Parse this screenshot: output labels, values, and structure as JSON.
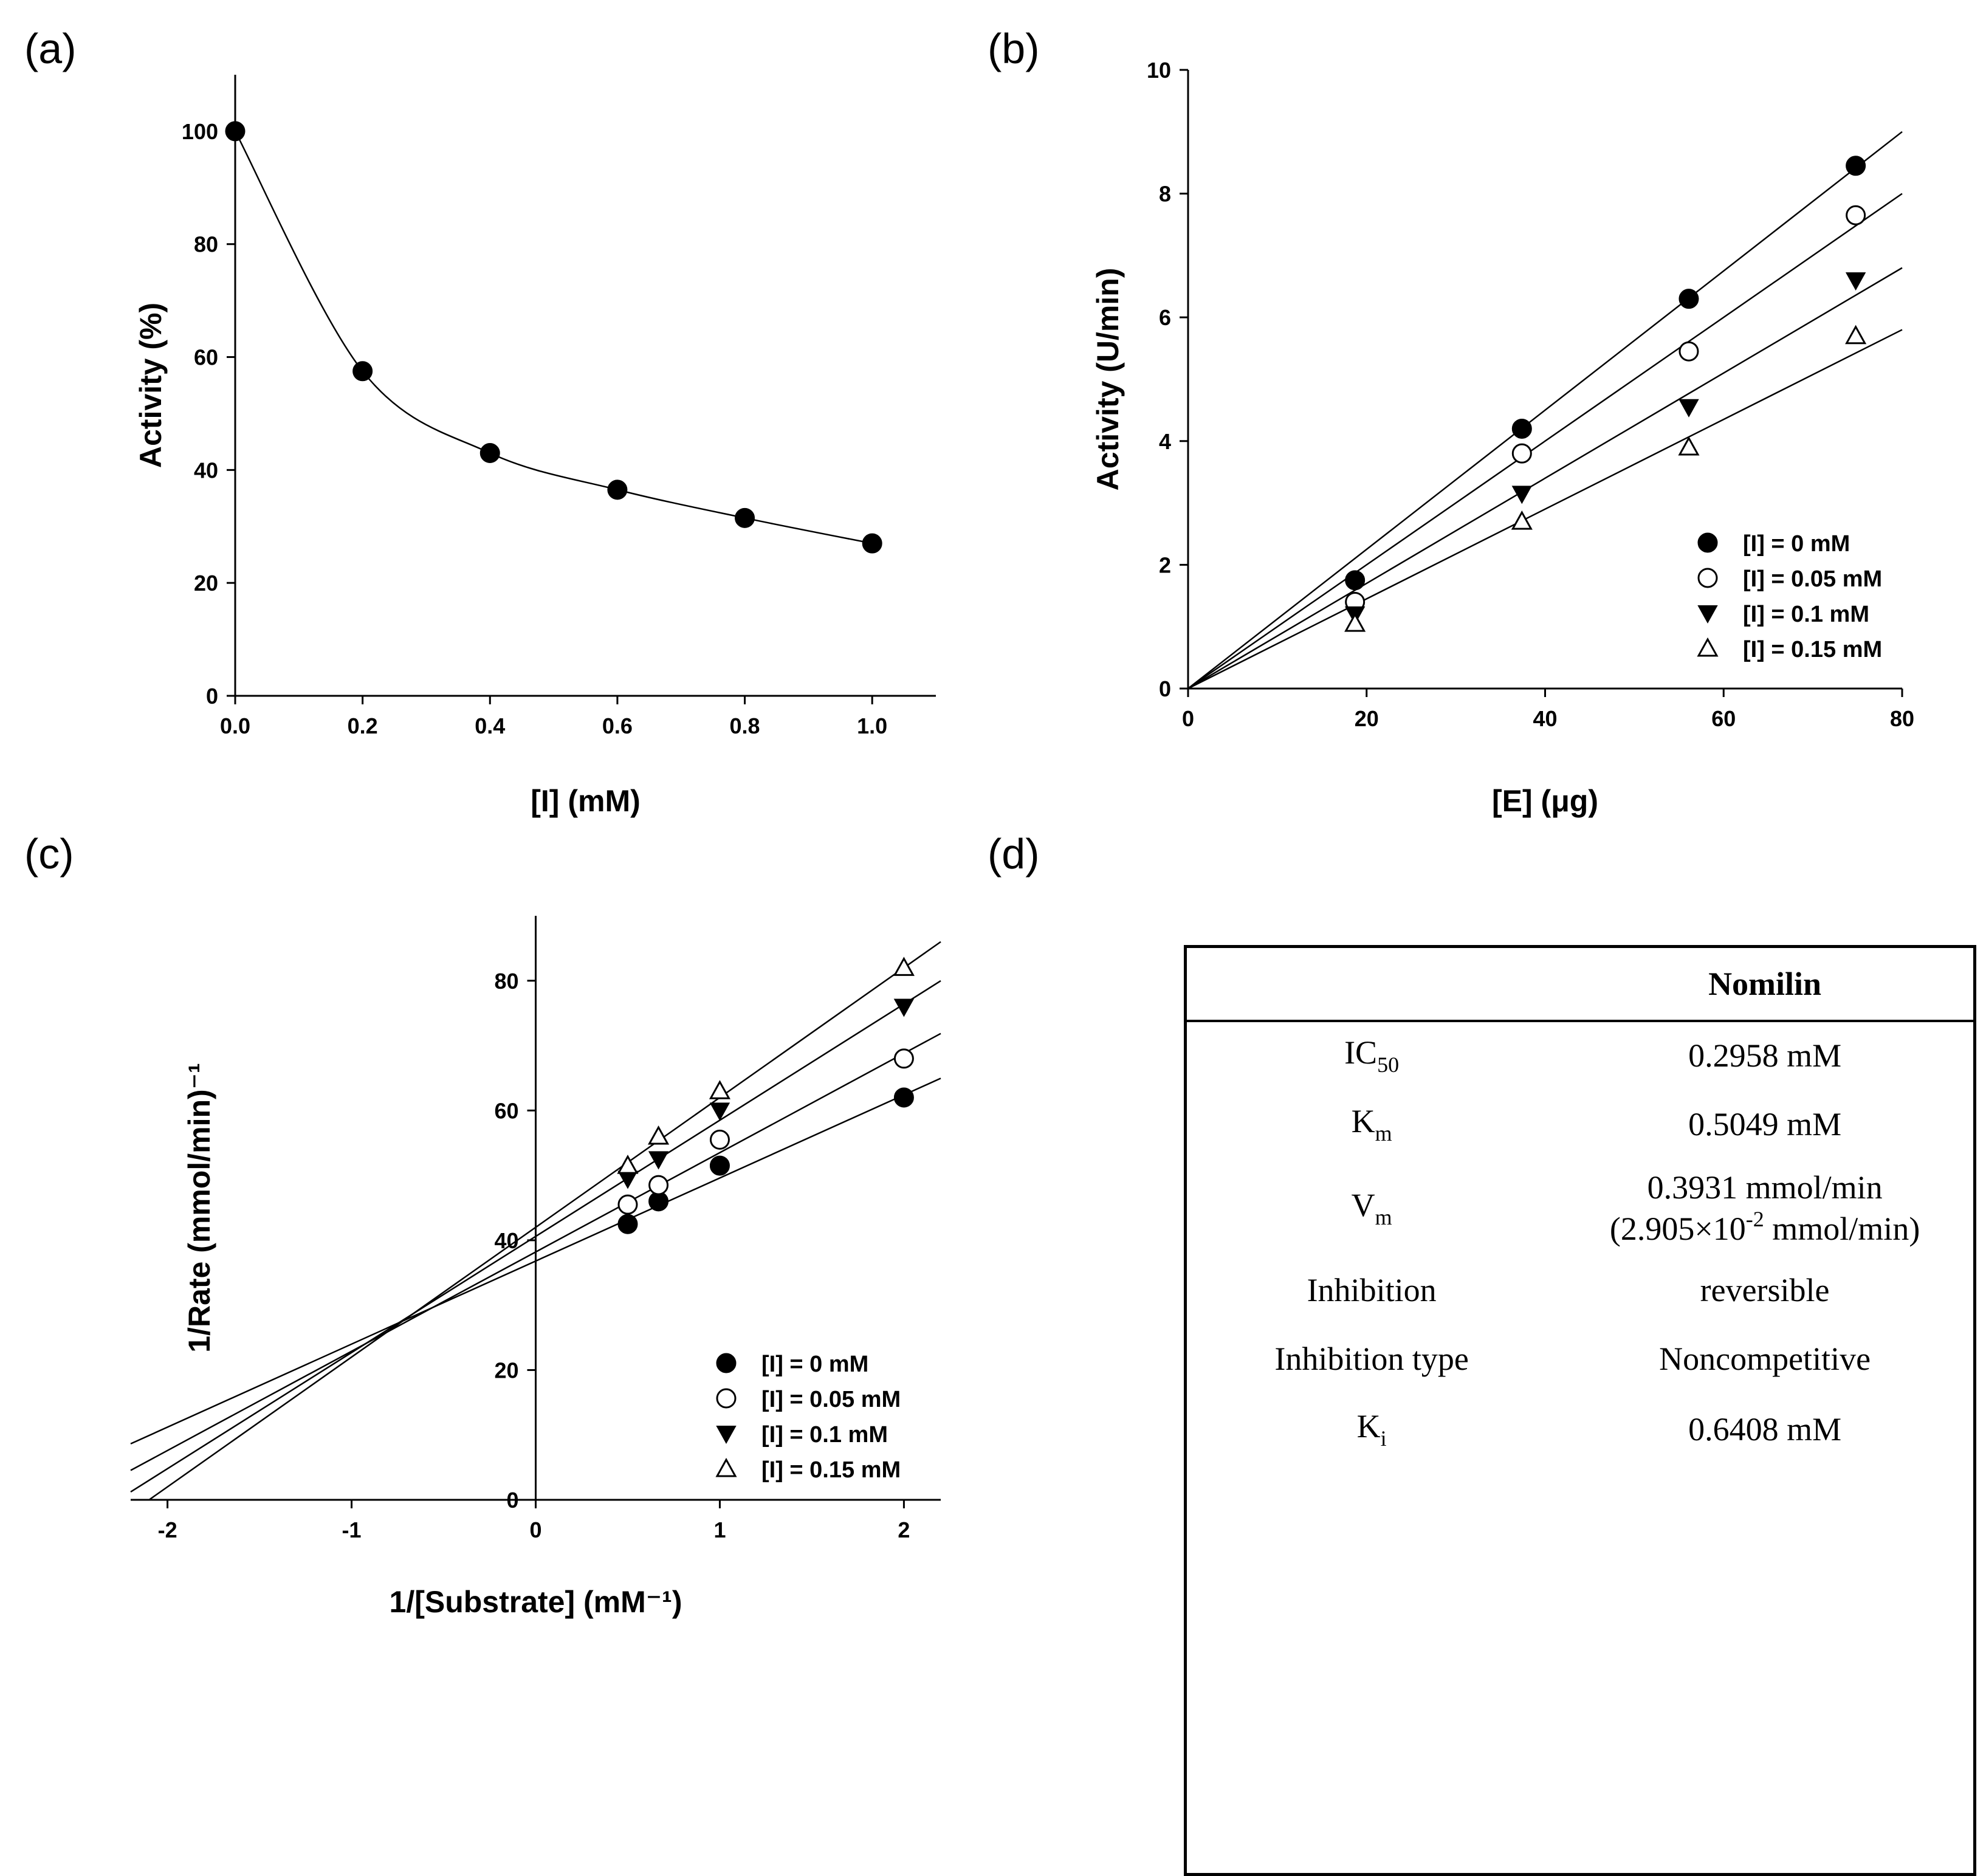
{
  "panels": {
    "a": "(a)",
    "b": "(b)",
    "c": "(c)",
    "d": "(d)"
  },
  "chart_data": [
    {
      "panel": "a",
      "type": "line",
      "xlabel": "[I] (mM)",
      "ylabel": "Activity (%)",
      "xlim": [
        0,
        1.1
      ],
      "ylim": [
        0,
        110
      ],
      "xticks": [
        "0.0",
        "0.2",
        "0.4",
        "0.6",
        "0.8",
        "1.0"
      ],
      "yticks": [
        "0",
        "20",
        "40",
        "60",
        "80",
        "100"
      ],
      "series": [
        {
          "name": "Activity",
          "marker": "filled-circle",
          "x": [
            0.0,
            0.2,
            0.4,
            0.6,
            0.8,
            1.0
          ],
          "y": [
            100,
            57.5,
            43,
            36.5,
            31.5,
            27
          ]
        }
      ]
    },
    {
      "panel": "b",
      "type": "scatter",
      "xlabel": "[E] (μg)",
      "ylabel": "Activity (U/min)",
      "xlim": [
        0,
        80
      ],
      "ylim": [
        0,
        10
      ],
      "xticks": [
        "0",
        "20",
        "40",
        "60",
        "80"
      ],
      "yticks": [
        "0",
        "2",
        "4",
        "6",
        "8",
        "10"
      ],
      "series": [
        {
          "name": "[I] = 0 mM",
          "marker": "filled-circle",
          "x": [
            18.7,
            37.4,
            56.1,
            74.8
          ],
          "y": [
            1.75,
            4.2,
            6.3,
            8.45
          ],
          "fit_slope": 0.1125
        },
        {
          "name": "[I] = 0.05 mM",
          "marker": "open-circle",
          "x": [
            18.7,
            37.4,
            56.1,
            74.8
          ],
          "y": [
            1.4,
            3.8,
            5.45,
            7.65
          ],
          "fit_slope": 0.1
        },
        {
          "name": "[I] = 0.1 mM",
          "marker": "filled-triangle-down",
          "x": [
            18.7,
            37.4,
            56.1,
            74.8
          ],
          "y": [
            1.2,
            3.15,
            4.55,
            6.6
          ],
          "fit_slope": 0.085
        },
        {
          "name": "[I] = 0.15 mM",
          "marker": "open-triangle-up",
          "x": [
            18.7,
            37.4,
            56.1,
            74.8
          ],
          "y": [
            1.05,
            2.7,
            3.9,
            5.7
          ],
          "fit_slope": 0.0725
        }
      ]
    },
    {
      "panel": "c",
      "type": "scatter",
      "xlabel": "1/[Substrate] (mM⁻¹)",
      "ylabel": "1/Rate (mmol/min)⁻¹",
      "xlim": [
        -2.2,
        2.2
      ],
      "ylim": [
        0,
        90
      ],
      "xticks": [
        "-2",
        "-1",
        "0",
        "1",
        "2"
      ],
      "yticks": [
        "0",
        "20",
        "40",
        "60",
        "80"
      ],
      "series": [
        {
          "name": "[I] = 0 mM",
          "marker": "filled-circle",
          "x": [
            0.5,
            0.667,
            1.0,
            2.0
          ],
          "y": [
            42.5,
            46,
            51.5,
            62
          ],
          "fit": [
            12.8,
            36.8
          ]
        },
        {
          "name": "[I] = 0.05 mM",
          "marker": "open-circle",
          "x": [
            0.5,
            0.667,
            1.0,
            2.0
          ],
          "y": [
            45.5,
            48.5,
            55.5,
            68
          ],
          "fit": [
            15.3,
            38.2
          ]
        },
        {
          "name": "[I] = 0.1 mM",
          "marker": "filled-triangle-down",
          "x": [
            0.5,
            0.667,
            1.0,
            2.0
          ],
          "y": [
            49.5,
            52.5,
            60,
            76
          ],
          "fit": [
            17.9,
            40.6
          ]
        },
        {
          "name": "[I] = 0.15 mM",
          "marker": "open-triangle-up",
          "x": [
            0.5,
            0.667,
            1.0,
            2.0
          ],
          "y": [
            51.5,
            56,
            63,
            82
          ],
          "fit": [
            20.0,
            42.0
          ]
        }
      ]
    }
  ],
  "table": {
    "header": "Nomilin",
    "rows": [
      {
        "label": "IC",
        "label_sub": "50",
        "value": "0.2958 mM"
      },
      {
        "label": "K",
        "label_sub": "m",
        "value": "0.5049 mM"
      },
      {
        "label": "V",
        "label_sub": "m",
        "value_line1": "0.3931 mmol/min",
        "value_line2_a": "(2.905×10",
        "value_line2_sup": "-2",
        "value_line2_b": " mmol/min)"
      },
      {
        "label": "Inhibition",
        "value": "reversible"
      },
      {
        "label": "Inhibition type",
        "value": "Noncompetitive"
      },
      {
        "label": "K",
        "label_sub": "i",
        "value": "0.6408 mM"
      }
    ]
  }
}
